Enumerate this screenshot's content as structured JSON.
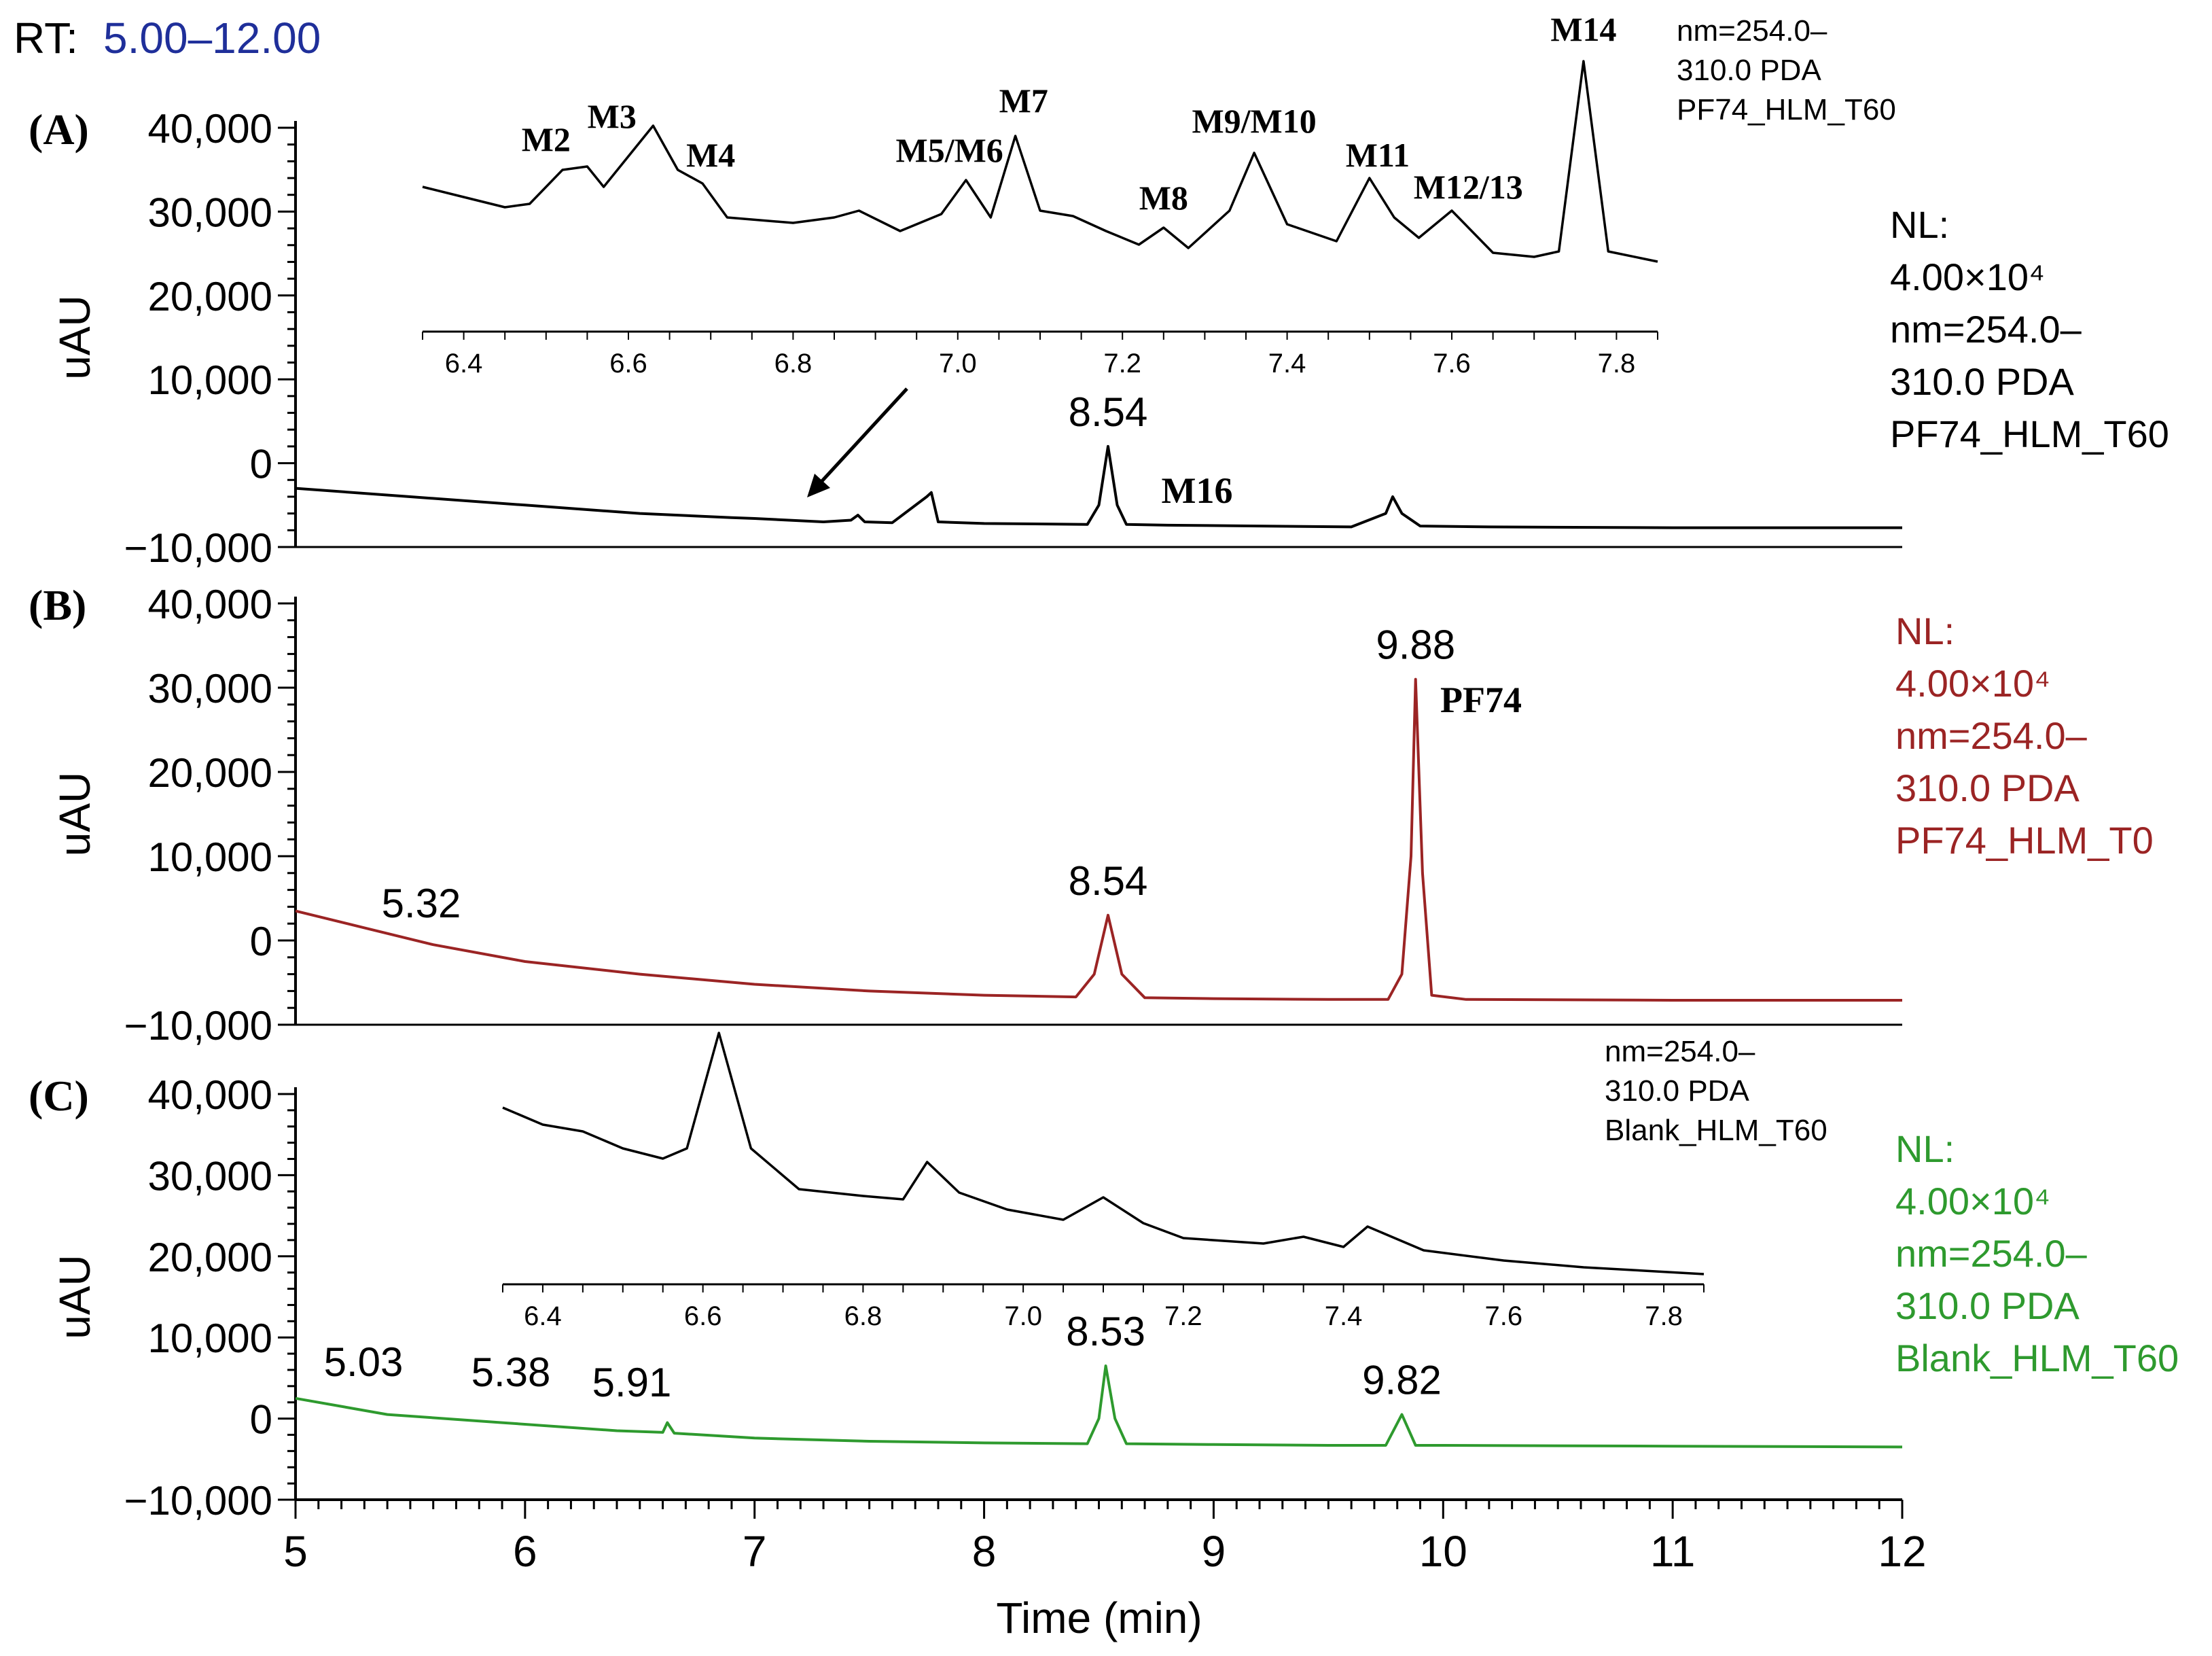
{
  "header": {
    "rt_label": "RT:",
    "rt_value": "5.00–12.00"
  },
  "colors": {
    "panel_a": "#000000",
    "panel_b": "#9b2424",
    "panel_c": "#2e9a2e",
    "rt_value": "#1f2f9a"
  },
  "x_axis": {
    "label": "Time (min)",
    "min": 5,
    "max": 12,
    "ticks": [
      "5",
      "6",
      "7",
      "8",
      "9",
      "10",
      "11",
      "12"
    ]
  },
  "chart_data": [
    {
      "type": "line",
      "panel": "A",
      "panel_label": "(A)",
      "ylabel": "uAU",
      "ylim": [
        -10000,
        40000
      ],
      "yticks": [
        "40,000",
        "30,000",
        "20,000",
        "10,000",
        "0",
        "−10,000"
      ],
      "legend_lines": [
        "NL:",
        "4.00×10⁴",
        "nm=254.0–",
        "310.0 PDA",
        "PF74_HLM_T60"
      ],
      "trace_x": [
        5.0,
        5.5,
        6.0,
        6.5,
        6.9,
        7.0,
        7.3,
        7.42,
        7.45,
        7.48,
        7.6,
        7.75,
        7.77,
        7.8,
        8.0,
        8.45,
        8.5,
        8.54,
        8.58,
        8.62,
        8.8,
        9.2,
        9.6,
        9.75,
        9.78,
        9.82,
        9.9,
        10.2,
        11.0,
        12.0
      ],
      "trace_y": [
        -3000,
        -4000,
        -5000,
        -6000,
        -6500,
        -6600,
        -7000,
        -6800,
        -6200,
        -7000,
        -7100,
        -4000,
        -3500,
        -7000,
        -7200,
        -7300,
        -5000,
        2000,
        -5000,
        -7300,
        -7400,
        -7500,
        -7600,
        -6000,
        -4000,
        -6000,
        -7500,
        -7600,
        -7700,
        -7700
      ],
      "peak_labels": [
        {
          "x": 8.54,
          "text": "8.54"
        }
      ],
      "annotations": [
        {
          "x": 8.78,
          "text": "M16"
        }
      ],
      "inset": {
        "xlim": [
          6.35,
          7.85
        ],
        "xticks": [
          "6.4",
          "6.6",
          "6.8",
          "7.0",
          "7.2",
          "7.4",
          "7.6",
          "7.8"
        ],
        "title_lines": [
          "nm=254.0–",
          "310.0 PDA",
          "PF74_HLM_T60"
        ],
        "peak_names": [
          {
            "x": 6.5,
            "text": "M2"
          },
          {
            "x": 6.58,
            "text": "M3"
          },
          {
            "x": 6.7,
            "text": "M4"
          },
          {
            "x": 6.99,
            "text": "M5/M6"
          },
          {
            "x": 7.08,
            "text": "M7"
          },
          {
            "x": 7.25,
            "text": "M8"
          },
          {
            "x": 7.36,
            "text": "M9/M10"
          },
          {
            "x": 7.51,
            "text": "M11"
          },
          {
            "x": 7.62,
            "text": "M12/13"
          },
          {
            "x": 7.76,
            "text": "M14"
          }
        ]
      }
    },
    {
      "type": "line",
      "panel": "B",
      "panel_label": "(B)",
      "ylabel": "uAU",
      "ylim": [
        -10000,
        40000
      ],
      "yticks": [
        "40,000",
        "30,000",
        "20,000",
        "10,000",
        "0",
        "−10,000"
      ],
      "legend_lines": [
        "NL:",
        "4.00×10⁴",
        "nm=254.0–",
        "310.0 PDA",
        "PF74_HLM_T0"
      ],
      "trace_x": [
        5.0,
        5.3,
        5.6,
        6.0,
        6.5,
        7.0,
        7.5,
        8.0,
        8.4,
        8.48,
        8.54,
        8.6,
        8.7,
        9.0,
        9.5,
        9.76,
        9.82,
        9.86,
        9.88,
        9.91,
        9.95,
        10.1,
        11.0,
        12.0
      ],
      "trace_y": [
        3500,
        1500,
        -500,
        -2500,
        -4000,
        -5200,
        -6000,
        -6500,
        -6700,
        -4000,
        3000,
        -4000,
        -6800,
        -6900,
        -7000,
        -7000,
        -4000,
        10000,
        31000,
        8000,
        -6500,
        -7000,
        -7100,
        -7100
      ],
      "peak_labels": [
        {
          "x": 5.32,
          "text": "5.32"
        },
        {
          "x": 8.54,
          "text": "8.54"
        },
        {
          "x": 9.88,
          "text": "9.88"
        }
      ],
      "annotations": [
        {
          "x": 9.95,
          "text": "PF74"
        }
      ]
    },
    {
      "type": "line",
      "panel": "C",
      "panel_label": "(C)",
      "ylabel": "uAU",
      "ylim": [
        -10000,
        40000
      ],
      "yticks": [
        "40,000",
        "30,000",
        "20,000",
        "10,000",
        "0",
        "−10,000"
      ],
      "legend_lines": [
        "NL:",
        "4.00×10⁴",
        "nm=254.0–",
        "310.0 PDA",
        "Blank_HLM_T60"
      ],
      "trace_x": [
        5.0,
        5.4,
        5.9,
        6.4,
        6.6,
        6.62,
        6.65,
        7.0,
        7.5,
        8.0,
        8.45,
        8.5,
        8.53,
        8.57,
        8.62,
        9.0,
        9.5,
        9.75,
        9.82,
        9.88,
        10.0,
        11.0,
        12.0
      ],
      "trace_y": [
        2500,
        500,
        -500,
        -1500,
        -1700,
        -500,
        -1800,
        -2400,
        -2800,
        -3000,
        -3100,
        0,
        6500,
        0,
        -3100,
        -3200,
        -3300,
        -3300,
        500,
        -3300,
        -3300,
        -3400,
        -3500
      ],
      "peak_labels": [
        {
          "x": 5.03,
          "text": "5.03"
        },
        {
          "x": 5.38,
          "text": "5.38"
        },
        {
          "x": 5.91,
          "text": "5.91"
        },
        {
          "x": 8.53,
          "text": "8.53"
        },
        {
          "x": 9.82,
          "text": "9.82"
        }
      ],
      "inset": {
        "xlim": [
          6.35,
          7.85
        ],
        "xticks": [
          "6.4",
          "6.6",
          "6.8",
          "7.0",
          "7.2",
          "7.4",
          "7.6",
          "7.8"
        ],
        "title_lines": [
          "nm=254.0–",
          "310.0 PDA",
          "Blank_HLM_T60"
        ],
        "peak_names": []
      }
    }
  ]
}
